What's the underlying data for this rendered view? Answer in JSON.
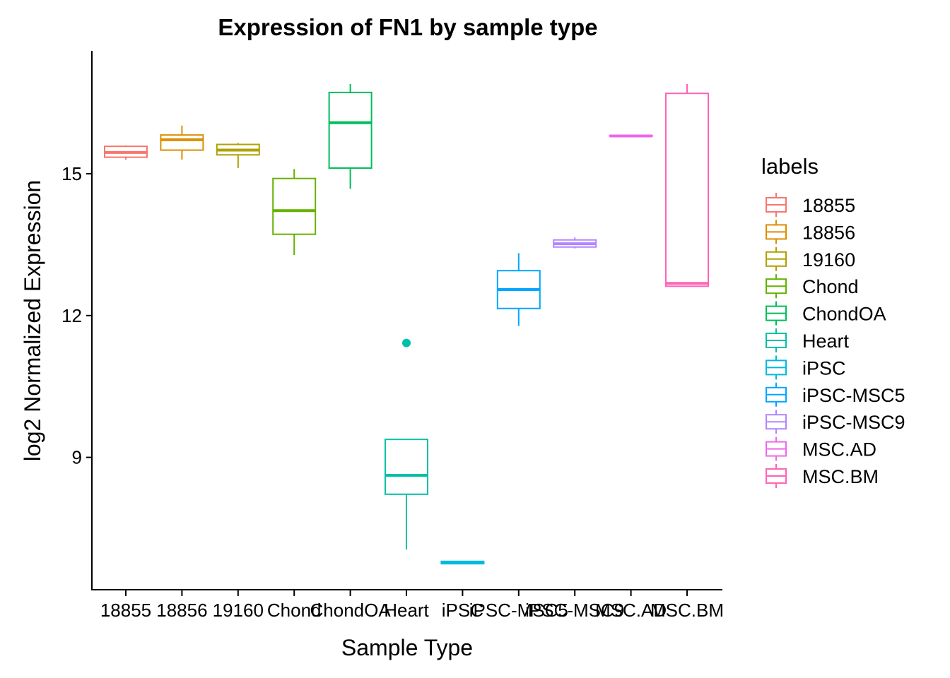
{
  "chart_data": {
    "type": "boxplot",
    "title": "Expression of FN1 by sample type",
    "xlabel": "Sample Type",
    "ylabel": "log2 Normalized Expression",
    "ylim": [
      6.2,
      17.6
    ],
    "yticks": [
      9,
      12,
      15
    ],
    "legend_title": "labels",
    "legend_position": "right",
    "grid": false,
    "categories": [
      "18855",
      "18856",
      "19160",
      "Chond",
      "ChondOA",
      "Heart",
      "iPSC",
      "iPSC-MSC5",
      "iPSC-MSC9",
      "MSC.AD",
      "MSC.BM"
    ],
    "series": [
      {
        "name": "18855",
        "color": "#F8766D",
        "min": 15.3,
        "q1": 15.35,
        "median": 15.45,
        "q3": 15.58,
        "max": 15.6,
        "outliers": []
      },
      {
        "name": "18856",
        "color": "#DB8E00",
        "min": 15.3,
        "q1": 15.5,
        "median": 15.72,
        "q3": 15.82,
        "max": 16.02,
        "outliers": []
      },
      {
        "name": "19160",
        "color": "#AEA200",
        "min": 15.12,
        "q1": 15.4,
        "median": 15.5,
        "q3": 15.62,
        "max": 15.65,
        "outliers": []
      },
      {
        "name": "Chond",
        "color": "#64B200",
        "min": 13.28,
        "q1": 13.72,
        "median": 14.22,
        "q3": 14.9,
        "max": 15.1,
        "outliers": []
      },
      {
        "name": "ChondOA",
        "color": "#00BD5C",
        "min": 14.68,
        "q1": 15.12,
        "median": 16.08,
        "q3": 16.72,
        "max": 16.9,
        "outliers": []
      },
      {
        "name": "Heart",
        "color": "#00C1A7",
        "min": 7.05,
        "q1": 8.22,
        "median": 8.62,
        "q3": 9.38,
        "max": 9.38,
        "outliers": [
          11.42
        ]
      },
      {
        "name": "iPSC",
        "color": "#00BADE",
        "min": 6.75,
        "q1": 6.75,
        "median": 6.78,
        "q3": 6.8,
        "max": 6.8,
        "outliers": []
      },
      {
        "name": "iPSC-MSC5",
        "color": "#00A6FF",
        "min": 11.78,
        "q1": 12.15,
        "median": 12.55,
        "q3": 12.95,
        "max": 13.32,
        "outliers": []
      },
      {
        "name": "iPSC-MSC9",
        "color": "#B385FF",
        "min": 13.42,
        "q1": 13.45,
        "median": 13.52,
        "q3": 13.6,
        "max": 13.65,
        "outliers": []
      },
      {
        "name": "MSC.AD",
        "color": "#EF67EB",
        "min": 15.8,
        "q1": 15.8,
        "median": 15.8,
        "q3": 15.81,
        "max": 15.82,
        "outliers": []
      },
      {
        "name": "MSC.BM",
        "color": "#FF63B6",
        "min": 12.62,
        "q1": 12.62,
        "median": 12.68,
        "q3": 16.7,
        "max": 16.9,
        "outliers": []
      }
    ]
  }
}
